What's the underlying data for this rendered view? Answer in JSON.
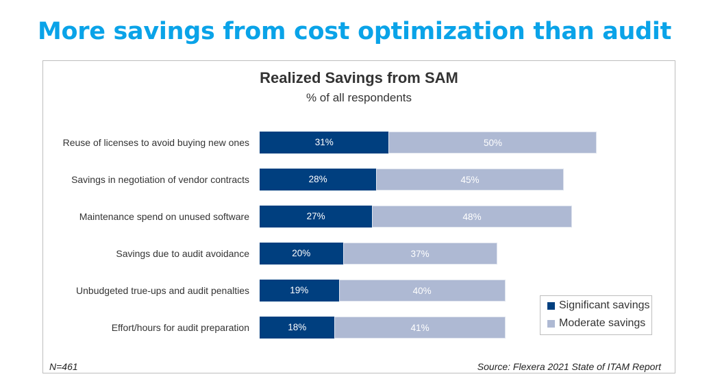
{
  "headline": "More savings from cost optimization than audit",
  "footer": {
    "n": "N=461",
    "source": "Source: Flexera 2021 State of ITAM Report"
  },
  "chart_data": {
    "type": "bar",
    "orientation": "horizontal",
    "stacked": true,
    "title": "Realized Savings from SAM",
    "subtitle": "% of all respondents",
    "categories": [
      "Reuse of licenses to avoid buying new ones",
      "Savings in negotiation of vendor contracts",
      "Maintenance spend on unused software",
      "Savings due to audit avoidance",
      "Unbudgeted true-ups and audit penalties",
      "Effort/hours for audit preparation"
    ],
    "series": [
      {
        "name": "Significant savings",
        "color": "#003f7f",
        "values": [
          31,
          28,
          27,
          20,
          19,
          18
        ]
      },
      {
        "name": "Moderate savings",
        "color": "#aeb9d3",
        "values": [
          50,
          45,
          48,
          37,
          40,
          41
        ]
      }
    ],
    "value_format": "%",
    "legend_position": "bottom-right",
    "grid": false
  }
}
